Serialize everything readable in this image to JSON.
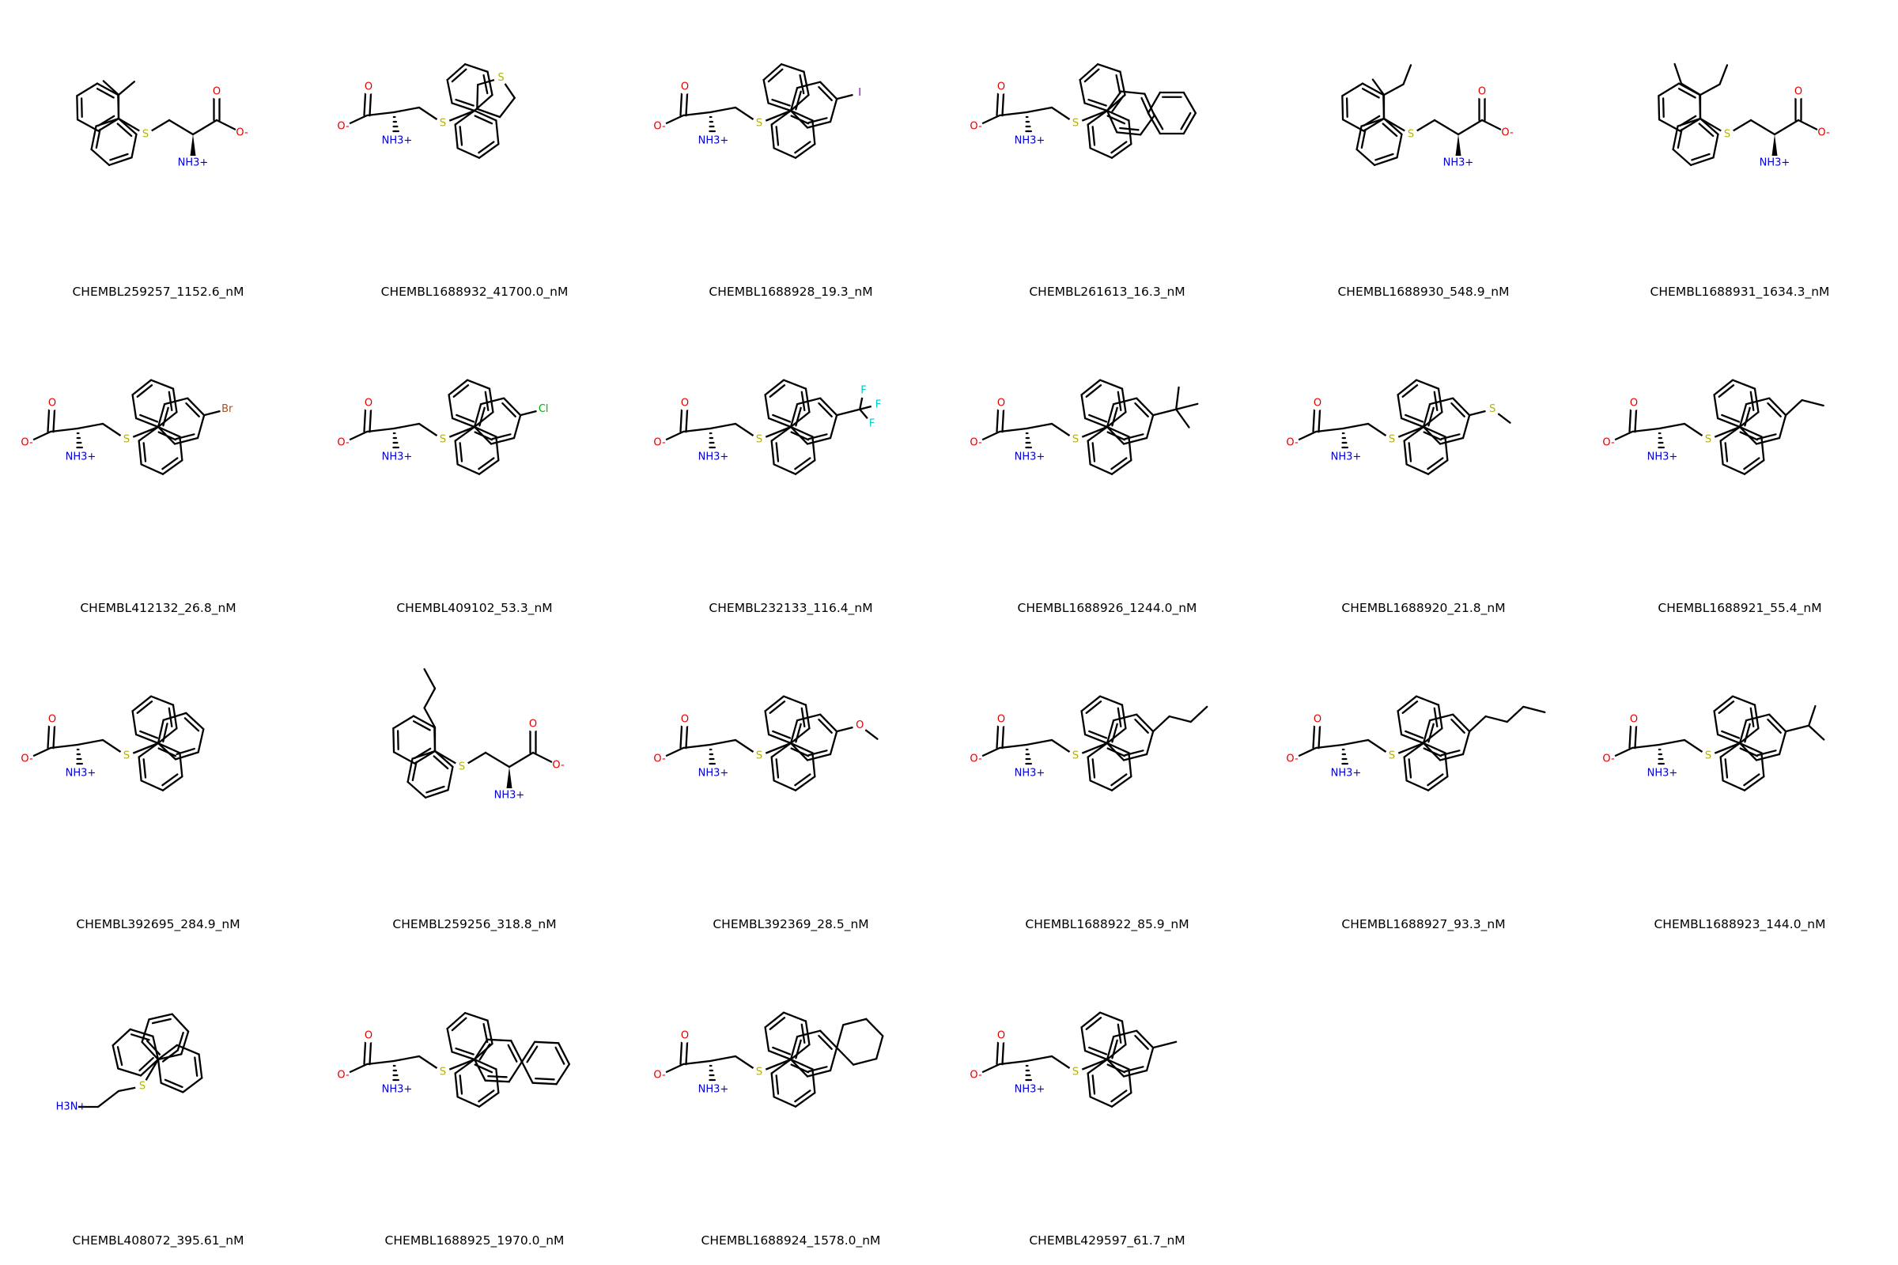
{
  "molecules": [
    {
      "label": "CHEMBL259257_1152.6_nM",
      "tpl": "C",
      "sub": "iPr"
    },
    {
      "label": "CHEMBL1688932_41700.0_nM",
      "tpl": "B",
      "sub": "thienyl"
    },
    {
      "label": "CHEMBL1688928_19.3_nM",
      "tpl": "B",
      "sub": "I"
    },
    {
      "label": "CHEMBL261613_16.3_nM",
      "tpl": "B",
      "sub": "naphthyl"
    },
    {
      "label": "CHEMBL1688930_548.9_nM",
      "tpl": "C",
      "sub": "secBu"
    },
    {
      "label": "CHEMBL1688931_1634.3_nM",
      "tpl": "C",
      "sub": "pentan3yl"
    },
    {
      "label": "CHEMBL412132_26.8_nM",
      "tpl": "A",
      "sub": "Br"
    },
    {
      "label": "CHEMBL409102_53.3_nM",
      "tpl": "A",
      "sub": "Cl"
    },
    {
      "label": "CHEMBL232133_116.4_nM",
      "tpl": "A",
      "sub": "CF3"
    },
    {
      "label": "CHEMBL1688926_1244.0_nM",
      "tpl": "A",
      "sub": "tBu"
    },
    {
      "label": "CHEMBL1688920_21.8_nM",
      "tpl": "A",
      "sub": "SMe"
    },
    {
      "label": "CHEMBL1688921_55.4_nM",
      "tpl": "A",
      "sub": "Et"
    },
    {
      "label": "CHEMBL392695_284.9_nM",
      "tpl": "A",
      "sub": "Ph"
    },
    {
      "label": "CHEMBL259256_318.8_nM",
      "tpl": "C",
      "sub": "nBu"
    },
    {
      "label": "CHEMBL392369_28.5_nM",
      "tpl": "A",
      "sub": "OMe"
    },
    {
      "label": "CHEMBL1688922_85.9_nM",
      "tpl": "A",
      "sub": "nPr"
    },
    {
      "label": "CHEMBL1688927_93.3_nM",
      "tpl": "A",
      "sub": "nBu"
    },
    {
      "label": "CHEMBL1688923_144.0_nM",
      "tpl": "A",
      "sub": "iPr"
    },
    {
      "label": "CHEMBL408072_395.61_nM",
      "tpl": "D",
      "sub": "amine"
    },
    {
      "label": "CHEMBL1688925_1970.0_nM",
      "tpl": "B",
      "sub": "biphenyl"
    },
    {
      "label": "CHEMBL1688924_1578.0_nM",
      "tpl": "A",
      "sub": "cHex"
    },
    {
      "label": "CHEMBL429597_61.7_nM",
      "tpl": "A",
      "sub": "Me"
    }
  ],
  "atom_text": {
    "O": "O",
    "O_minus": "O-",
    "S": "S",
    "amine": "NH3+",
    "primary_amine": "H3N+",
    "Br": "Br",
    "Cl": "Cl",
    "I": "I",
    "F": "F"
  },
  "colors": {
    "bond": "#000000",
    "oxygen": "#e00000",
    "sulfur": "#b3b300",
    "nitrogen": "#0000d0",
    "bromine": "#a0522d",
    "chlorine": "#00b000",
    "iodine": "#9400d3",
    "fluorine": "#00c8c8"
  }
}
